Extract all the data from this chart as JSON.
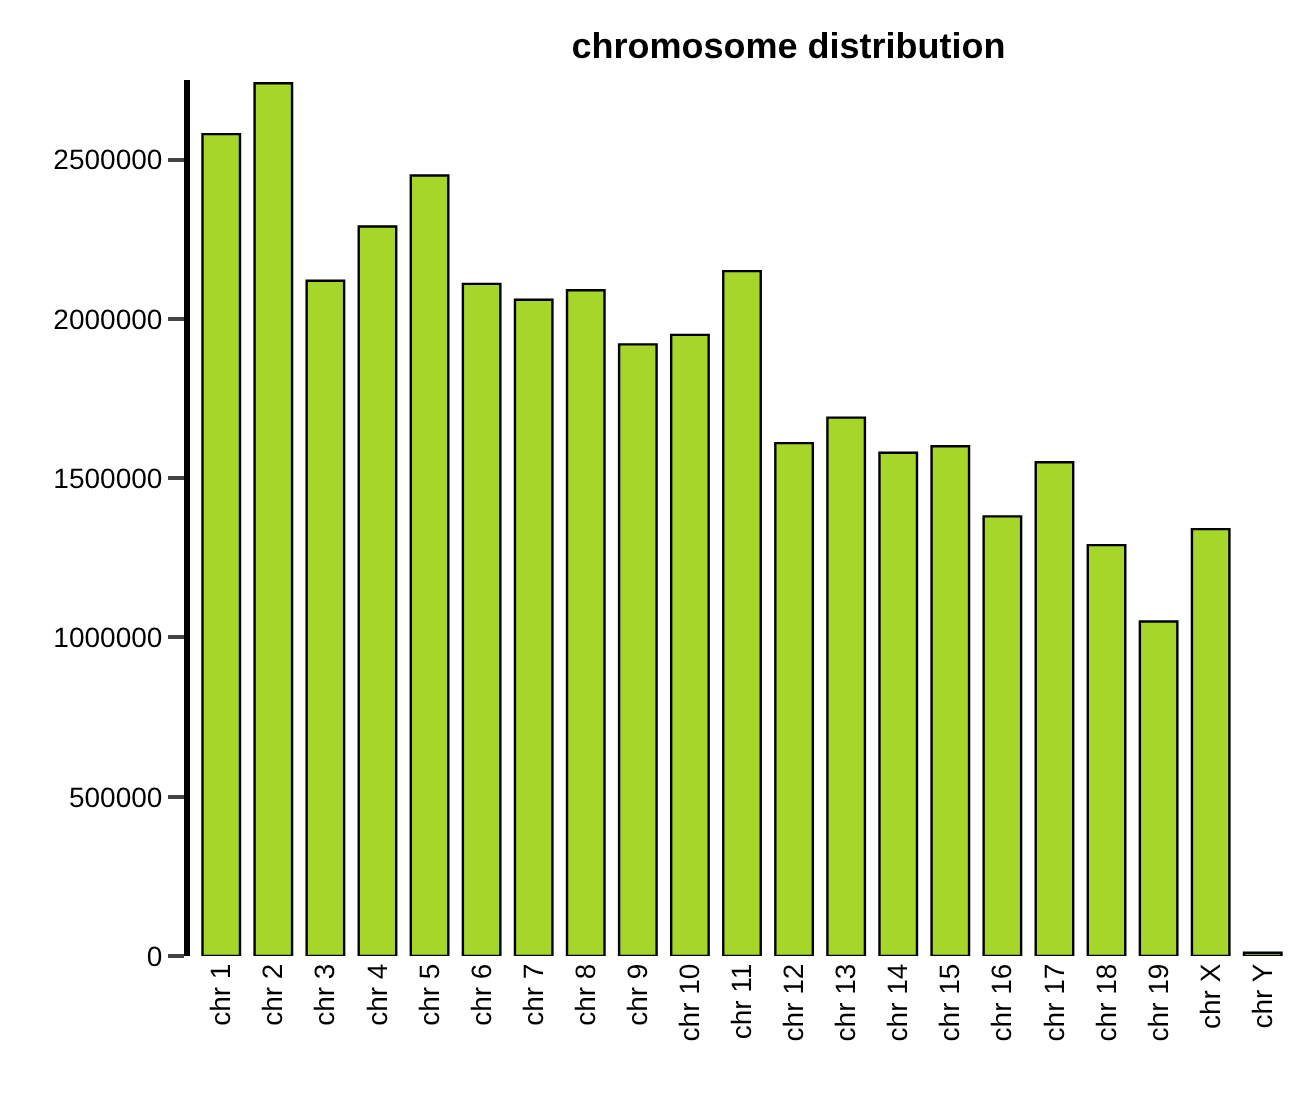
{
  "chart_data": {
    "type": "bar",
    "title": "chromosome distribution",
    "categories": [
      "chr 1",
      "chr 2",
      "chr 3",
      "chr 4",
      "chr 5",
      "chr 6",
      "chr 7",
      "chr 8",
      "chr 9",
      "chr 10",
      "chr 11",
      "chr 12",
      "chr 13",
      "chr 14",
      "chr 15",
      "chr 16",
      "chr 17",
      "chr 18",
      "chr 19",
      "chr X",
      "chr Y"
    ],
    "values": [
      2580000,
      2740000,
      2120000,
      2290000,
      2450000,
      2110000,
      2060000,
      2090000,
      1920000,
      1950000,
      2150000,
      1610000,
      1690000,
      1580000,
      1600000,
      1380000,
      1550000,
      1290000,
      1050000,
      1340000,
      10000
    ],
    "color": "#a6d62a",
    "ylim": [
      0,
      2750000
    ],
    "yticks": [
      0,
      500000,
      1000000,
      1500000,
      2000000,
      2500000
    ]
  }
}
